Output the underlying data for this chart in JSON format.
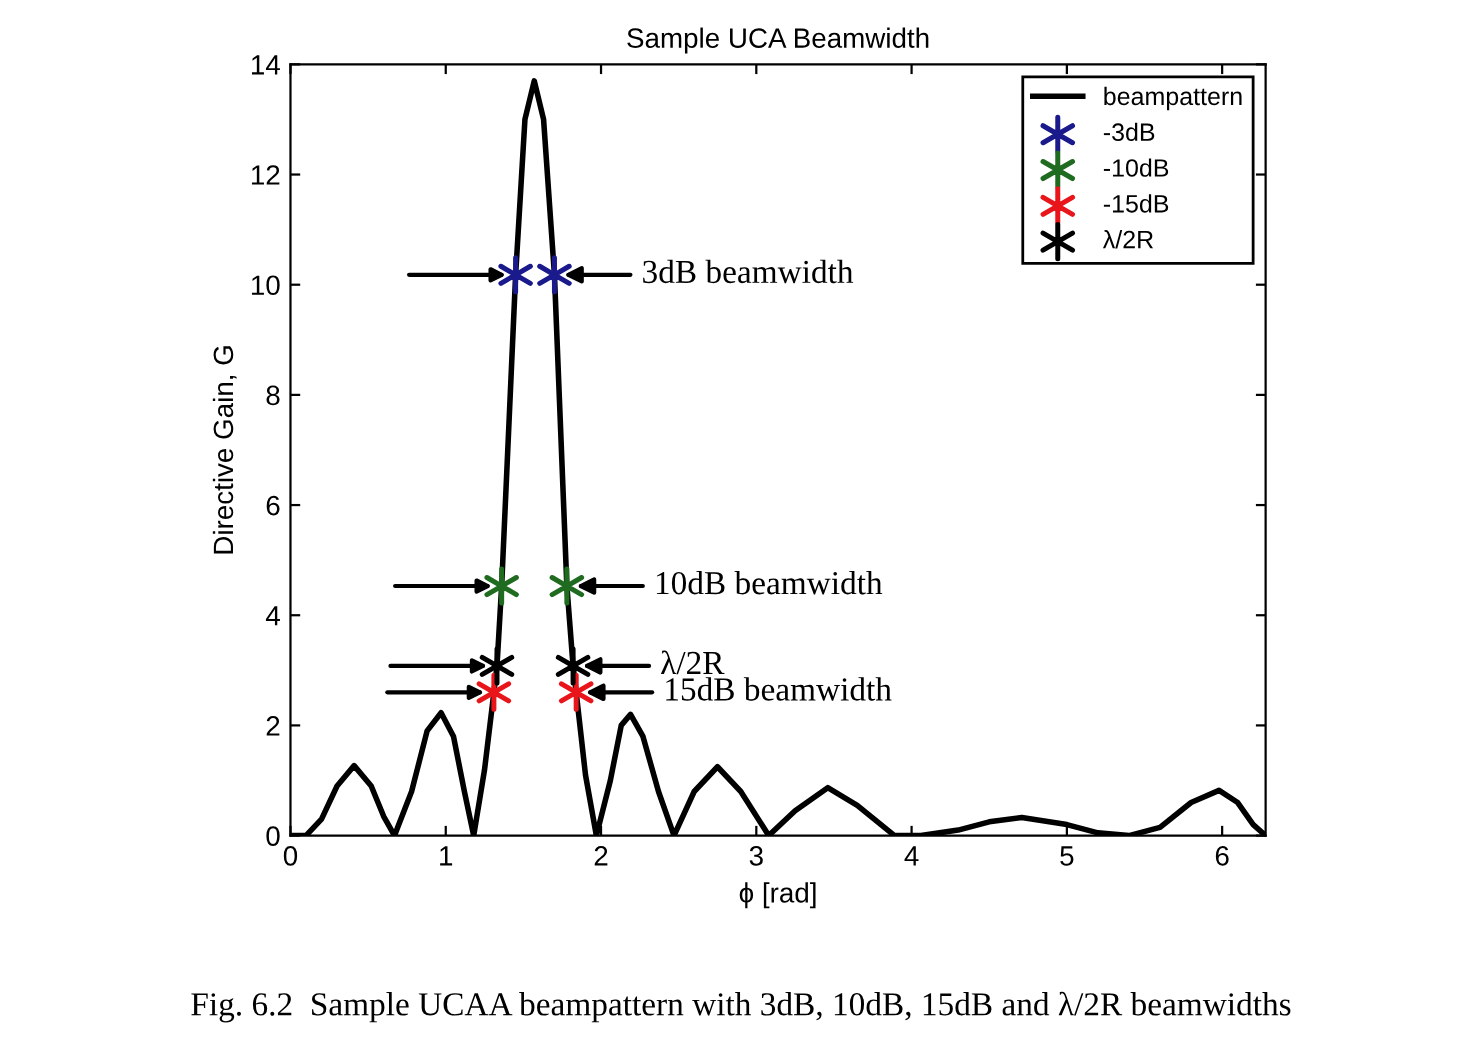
{
  "chart_data": {
    "type": "line",
    "title": "Sample UCA Beamwidth",
    "xlabel": "ϕ [rad]",
    "ylabel": "Directive Gain, G",
    "xlim": [
      0,
      6.28
    ],
    "ylim": [
      0,
      14
    ],
    "xticks": [
      0,
      1,
      2,
      3,
      4,
      5,
      6
    ],
    "yticks": [
      0,
      2,
      4,
      6,
      8,
      10,
      12,
      14
    ],
    "grid": false,
    "legend": "top right",
    "series": [
      {
        "name": "beampattern",
        "color": "#000000",
        "marker": "none",
        "line_style": "solid",
        "x": [
          0,
          0.1,
          0.2,
          0.3,
          0.41,
          0.52,
          0.6,
          0.67,
          0.78,
          0.88,
          0.97,
          1.05,
          1.12,
          1.18,
          1.25,
          1.31,
          1.33,
          1.36,
          1.45,
          1.51,
          1.57,
          1.63,
          1.7,
          1.78,
          1.82,
          1.84,
          1.9,
          1.97,
          2.06,
          2.13,
          2.19,
          2.27,
          2.37,
          2.47,
          2.6,
          2.75,
          2.9,
          3.08,
          3.25,
          3.46,
          3.65,
          3.89,
          4.06,
          4.3,
          4.5,
          4.71,
          5.0,
          5.2,
          5.4,
          5.6,
          5.8,
          5.98,
          6.1,
          6.2,
          6.28
        ],
        "values": [
          0,
          0,
          0.3,
          0.9,
          1.27,
          0.9,
          0.35,
          0,
          0.8,
          1.9,
          2.23,
          1.8,
          0.8,
          0,
          1.2,
          2.6,
          3.08,
          4.53,
          10.18,
          13.0,
          13.7,
          13.0,
          10.18,
          4.53,
          3.08,
          2.6,
          1.1,
          0,
          1.0,
          2.0,
          2.2,
          1.8,
          0.8,
          0,
          0.8,
          1.25,
          0.8,
          0,
          0.45,
          0.87,
          0.55,
          0,
          0,
          0.1,
          0.25,
          0.33,
          0.2,
          0.05,
          0,
          0.15,
          0.6,
          0.82,
          0.6,
          0.2,
          0
        ]
      },
      {
        "name": "-3dB",
        "type": "scatter",
        "color": "#1a1a8c",
        "marker": "cross",
        "x": [
          1.45,
          1.7
        ],
        "values": [
          10.18,
          10.18
        ]
      },
      {
        "name": "-10dB",
        "type": "scatter",
        "color": "#1f6b1f",
        "marker": "cross",
        "x": [
          1.36,
          1.78
        ],
        "values": [
          4.53,
          4.53
        ]
      },
      {
        "name": "-15dB",
        "type": "scatter",
        "color": "#e8161b",
        "marker": "cross",
        "x": [
          1.31,
          1.84
        ],
        "values": [
          2.6,
          2.6
        ]
      },
      {
        "name": "λ/2R",
        "type": "scatter",
        "color": "#000000",
        "marker": "cross",
        "x": [
          1.33,
          1.82
        ],
        "values": [
          3.08,
          3.08
        ]
      }
    ],
    "annotations": [
      {
        "text": "3dB beamwidth",
        "x": 1.7,
        "y": 10.18
      },
      {
        "text": "10dB beamwidth",
        "x": 1.78,
        "y": 4.53
      },
      {
        "text": "λ/2R",
        "x": 1.82,
        "y": 3.08
      },
      {
        "text": "15dB beamwidth",
        "x": 1.84,
        "y": 2.6
      },
      "Fig. 6.2  Sample UCAA beampattern with 3dB, 10dB, 15dB and λ/2R beamwidths"
    ]
  }
}
